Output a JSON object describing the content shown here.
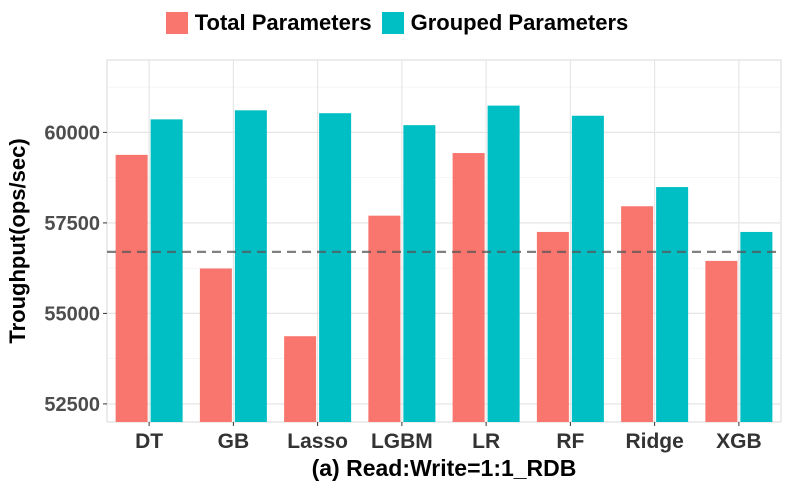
{
  "chart_data": {
    "type": "bar",
    "categories": [
      "DT",
      "GB",
      "Lasso",
      "LGBM",
      "LR",
      "RF",
      "Ridge",
      "XGB"
    ],
    "series": [
      {
        "name": "Total Parameters",
        "color": "#F8766D",
        "values": [
          59380,
          56240,
          54370,
          57700,
          59430,
          57250,
          57960,
          56450
        ]
      },
      {
        "name": "Grouped Parameters",
        "color": "#00BFC4",
        "values": [
          60360,
          60610,
          60530,
          60200,
          60740,
          60460,
          58490,
          57250
        ]
      }
    ],
    "reference_line": {
      "value": 56700,
      "style": "dashed"
    },
    "xlabel": "(a) Read:Write=1:1_RDB",
    "ylabel": "Troughput(ops/sec)",
    "ylim": [
      52000,
      62000
    ],
    "yticks": [
      52500,
      55000,
      57500,
      60000
    ],
    "legend_position": "top",
    "grid": true
  }
}
